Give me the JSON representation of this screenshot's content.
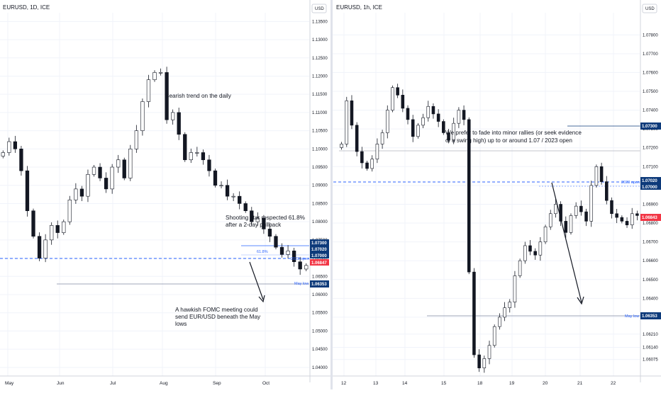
{
  "left_panel": {
    "symbol": "EURUSD, 1D, ICE",
    "currency_button": "USD",
    "annotations": {
      "trend": "Bearish trend on the daily",
      "shooting_star": [
        "Shooting star respected 61.8%",
        "after a 2-day pullback"
      ],
      "fomc": [
        "A hawkish FOMC meeting could",
        "send EUR/USD beneath the May",
        "lows"
      ]
    },
    "level_labels": {
      "fib": "61.8%",
      "open": "2023 open",
      "may_low": "May low"
    },
    "tags": {
      "t1": "1.07300",
      "t2": "1.07020",
      "t3": "1.07000",
      "current": "1.06847",
      "may_low": "1.06353"
    }
  },
  "right_panel": {
    "symbol": "EURUSD, 1h, ICE",
    "currency_button": "USD",
    "annotations": {
      "fade": [
        "We prefer to fade into minor rallies (or seek evidence",
        "of a swing high) up to or around 1.07 / 2023 open"
      ]
    },
    "level_labels": {
      "open": "2023 open",
      "may_low": "May low"
    },
    "tags": {
      "t1": "1.07300",
      "t2": "1.07020",
      "t3": "1.07000",
      "current": "1.06843",
      "may_low": "1.06353"
    }
  },
  "colors": {
    "bull": "#ffffff",
    "bear": "#131722",
    "tag_blue": "#0d3a7a",
    "tag_red": "#f23645",
    "level": "#2962ff",
    "arrow": "#131722"
  },
  "chart_data": [
    {
      "type": "candlestick",
      "title": "EURUSD, 1D, ICE",
      "x_ticks": [
        "May",
        "Jun",
        "Jul",
        "Aug",
        "Sep",
        "Oct"
      ],
      "y_ticks": [
        "1.13500",
        "1.13000",
        "1.12500",
        "1.12000",
        "1.11500",
        "1.11000",
        "1.10500",
        "1.10000",
        "1.09500",
        "1.09000",
        "1.08500",
        "1.08000",
        "1.07500",
        "1.07000",
        "1.06500",
        "1.06000",
        "1.05500",
        "1.05000",
        "1.04500",
        "1.04000"
      ],
      "ylim": [
        1.0388,
        1.1374
      ],
      "ohlc_close_estimates": [
        1.099,
        1.102,
        1.1,
        1.094,
        1.083,
        1.076,
        1.07,
        1.075,
        1.079,
        1.077,
        1.08,
        1.086,
        1.089,
        1.087,
        1.093,
        1.095,
        1.092,
        1.089,
        1.095,
        1.097,
        1.092,
        1.1,
        1.105,
        1.113,
        1.119,
        1.121,
        1.121,
        1.108,
        1.11,
        1.104,
        1.097,
        1.099,
        1.099,
        1.097,
        1.094,
        1.09,
        1.09,
        1.087,
        1.087,
        1.085,
        1.083,
        1.08,
        1.081,
        1.078,
        1.076,
        1.073,
        1.071,
        1.072,
        1.069,
        1.067,
        1.068
      ],
      "levels": [
        {
          "label": "61.8%",
          "value": 1.073
        },
        {
          "label": "2023 open",
          "value": 1.0702
        },
        {
          "label": "May low",
          "value": 1.0635
        }
      ]
    },
    {
      "type": "candlestick",
      "title": "EURUSD, 1h, ICE",
      "x_ticks": [
        "12",
        "13",
        "14",
        "15",
        "18",
        "19",
        "20",
        "21",
        "22"
      ],
      "y_ticks": [
        "1.07800",
        "1.07700",
        "1.07600",
        "1.07500",
        "1.07400",
        "1.07300",
        "1.07200",
        "1.07100",
        "1.07000",
        "1.06900",
        "1.06800",
        "1.06700",
        "1.06600",
        "1.06500",
        "1.06400",
        "1.06300",
        "1.06210",
        "1.06140",
        "1.06075"
      ],
      "ylim": [
        1.0601,
        1.0788
      ],
      "ohlc_close_estimates": [
        1.0722,
        1.0745,
        1.0732,
        1.0718,
        1.0712,
        1.0709,
        1.0714,
        1.0722,
        1.0728,
        1.074,
        1.0752,
        1.0748,
        1.0741,
        1.0735,
        1.0726,
        1.0732,
        1.0736,
        1.0742,
        1.0738,
        1.0734,
        1.0728,
        1.0724,
        1.0733,
        1.074,
        1.0735,
        1.0654,
        1.061,
        1.0603,
        1.0608,
        1.0615,
        1.0625,
        1.063,
        1.0635,
        1.0638,
        1.0652,
        1.066,
        1.0668,
        1.0665,
        1.0663,
        1.067,
        1.0678,
        1.0685,
        1.069,
        1.0681,
        1.0675,
        1.0684,
        1.0689,
        1.0686,
        1.0681,
        1.07,
        1.071,
        1.0702,
        1.0692,
        1.0685,
        1.0683,
        1.0681,
        1.0679,
        1.0685,
        1.0684
      ],
      "levels": [
        {
          "label": "2023 open",
          "value": 1.0702
        },
        {
          "label": "May low",
          "value": 1.0635
        }
      ]
    }
  ]
}
